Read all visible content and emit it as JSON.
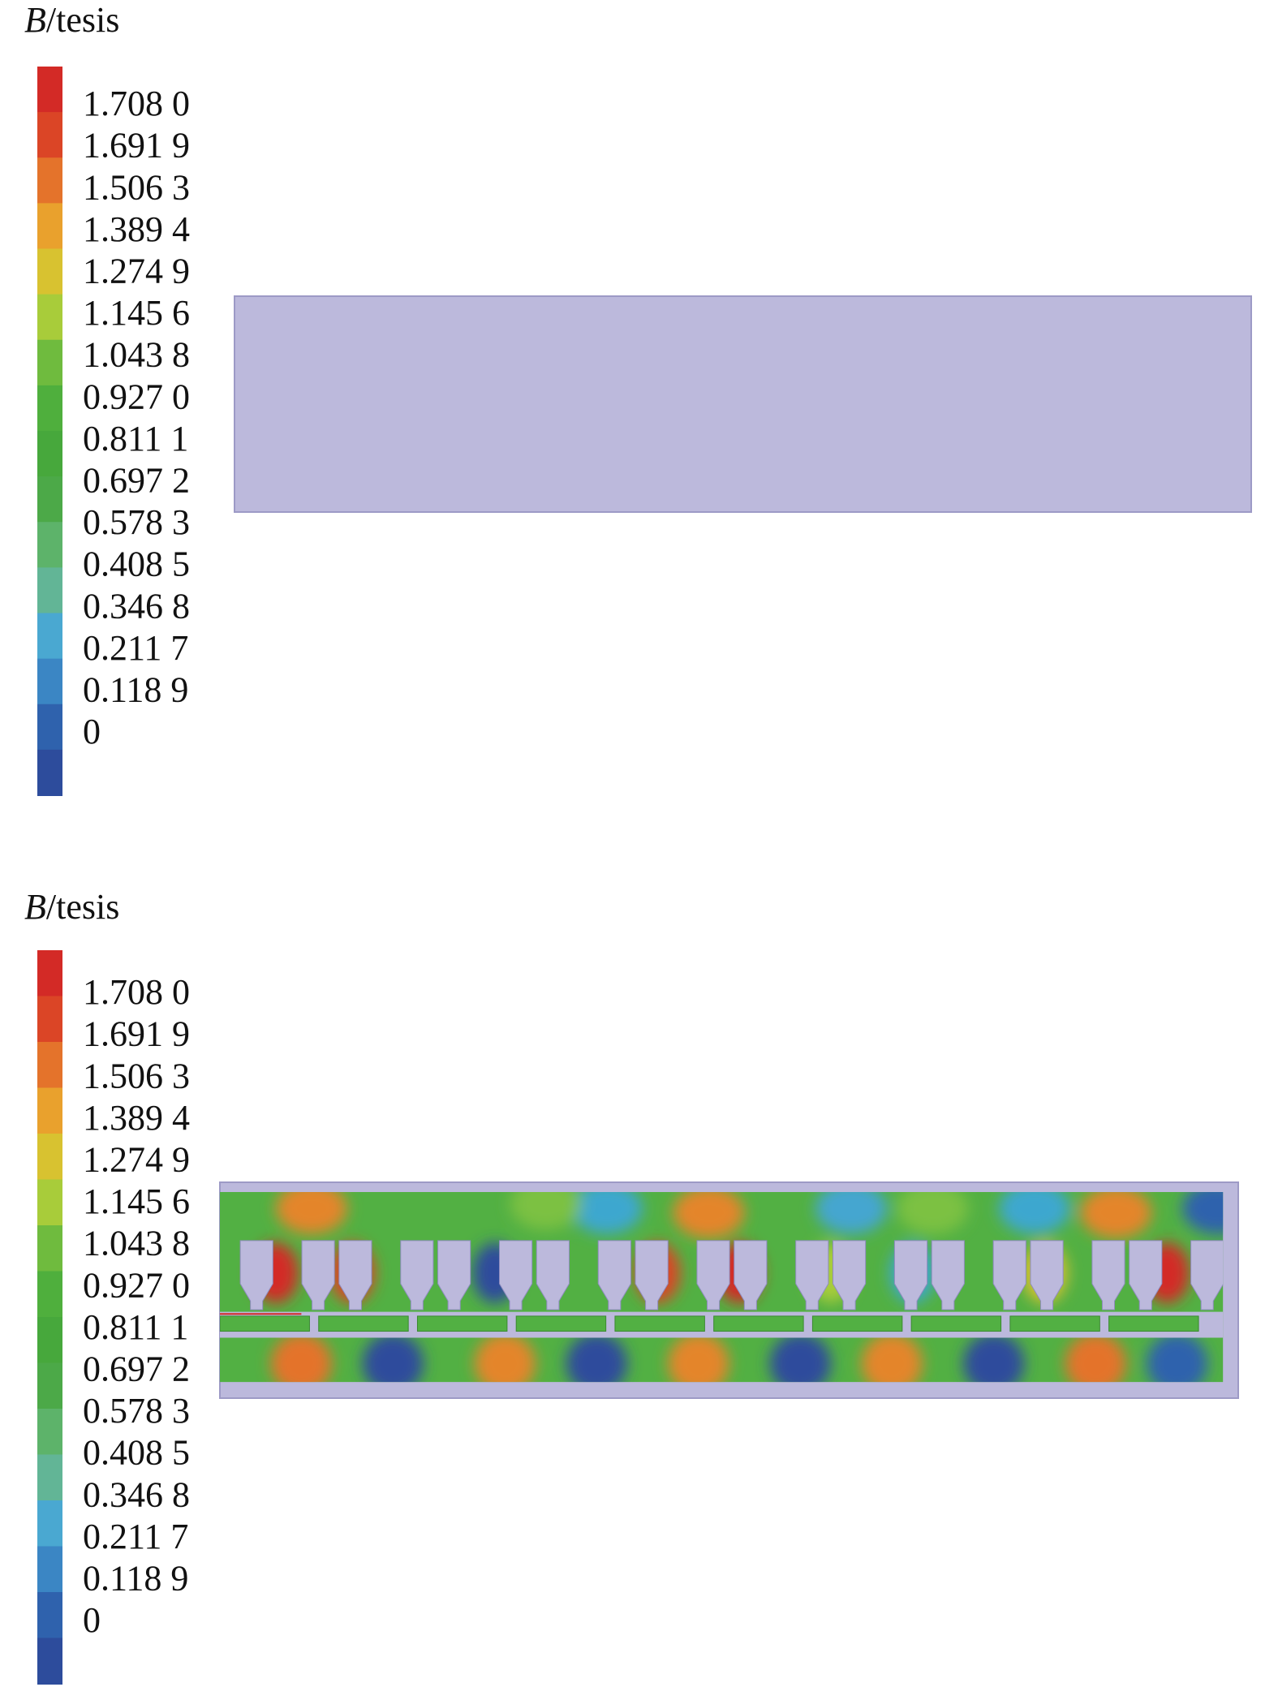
{
  "panels": [
    {
      "symbol": "B",
      "unit": "/tesis",
      "legend_labels": [
        "1.708 0",
        "1.691 9",
        "1.506 3",
        "1.389 4",
        "1.274 9",
        "1.145 6",
        "1.043 8",
        "0.927 0",
        "0.811 1",
        "0.697 2",
        "0.578 3",
        "0.408 5",
        "0.346 8",
        "0.211 7",
        "0.118 9",
        "0"
      ]
    },
    {
      "symbol": "B",
      "unit": "/tesis",
      "legend_labels": [
        "1.708 0",
        "1.691 9",
        "1.506 3",
        "1.389 4",
        "1.274 9",
        "1.145 6",
        "1.043 8",
        "0.927 0",
        "0.811 1",
        "0.697 2",
        "0.578 3",
        "0.408 5",
        "0.346 8",
        "0.211 7",
        "0.118 9",
        "0"
      ]
    }
  ]
}
